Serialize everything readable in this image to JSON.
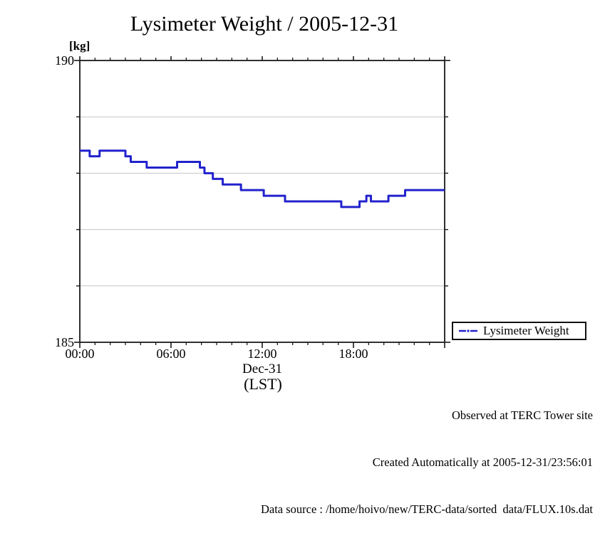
{
  "title": "Lysimeter Weight / 2005-12-31",
  "y_unit_label": "[kg]",
  "y_axis": {
    "top_label": "190",
    "bottom_label": "185"
  },
  "x_axis": {
    "date_label": "Dec-31",
    "tz_label": "(LST)"
  },
  "legend": {
    "label": "Lysimeter Weight"
  },
  "footer": {
    "line1": "Observed at TERC Tower site",
    "line2": "Created Automatically at 2005-12-31/23:56:01",
    "line3": "Data source : /home/hoivo/new/TERC-data/sorted  data/FLUX.10s.dat"
  },
  "colors": {
    "line": "#2222cd",
    "grid": "#c4c4c4",
    "axis": "#1a1a1a"
  },
  "chart_data": {
    "type": "line",
    "step": "post",
    "title": "Lysimeter Weight / 2005-12-31",
    "xlabel": "Dec-31 (LST)",
    "ylabel": "[kg]",
    "xlim_hours": [
      0,
      24
    ],
    "ylim": [
      185,
      190
    ],
    "grid": "horizontal-only",
    "y_gridlines": [
      186,
      187,
      188,
      189
    ],
    "y_major_ticks": [
      185,
      190
    ],
    "x_minor_tick_every_hours": 1,
    "x_major_ticks_hours": [
      0,
      6,
      12,
      18,
      24
    ],
    "x_tick_labels": [
      {
        "hour": 0,
        "label": "00:00"
      },
      {
        "hour": 6,
        "label": "06:00"
      },
      {
        "hour": 12,
        "label": "12:00"
      },
      {
        "hour": 18,
        "label": "18:00"
      }
    ],
    "legend_position": "outside-bottom-right",
    "series": [
      {
        "name": "Lysimeter Weight",
        "color": "#2222cd",
        "units": "kg",
        "points_hour_kg": [
          [
            0.0,
            188.4
          ],
          [
            0.65,
            188.3
          ],
          [
            1.3,
            188.4
          ],
          [
            3.0,
            188.3
          ],
          [
            3.35,
            188.2
          ],
          [
            4.4,
            188.1
          ],
          [
            6.4,
            188.2
          ],
          [
            7.9,
            188.1
          ],
          [
            8.2,
            188.0
          ],
          [
            8.75,
            187.9
          ],
          [
            9.4,
            187.8
          ],
          [
            10.6,
            187.7
          ],
          [
            12.1,
            187.6
          ],
          [
            13.5,
            187.5
          ],
          [
            17.2,
            187.4
          ],
          [
            18.4,
            187.5
          ],
          [
            18.85,
            187.6
          ],
          [
            19.15,
            187.5
          ],
          [
            20.3,
            187.6
          ],
          [
            21.4,
            187.7
          ],
          [
            24.0,
            187.7
          ]
        ]
      }
    ]
  }
}
